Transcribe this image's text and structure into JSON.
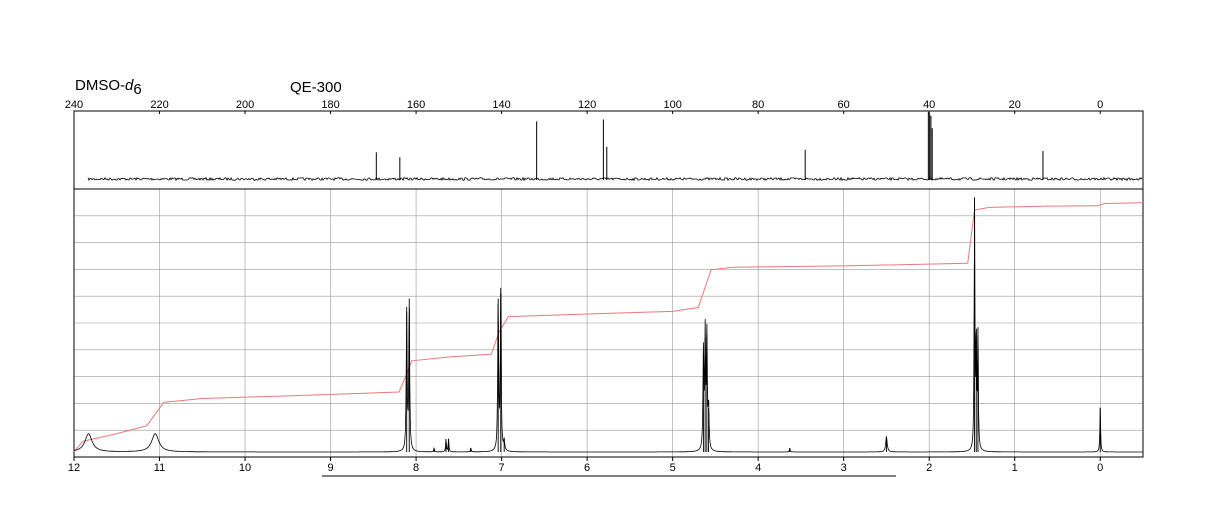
{
  "labels": {
    "solvent_prefix": "DMSO-",
    "solvent_italic": "d",
    "solvent_subscript": "6",
    "instrument": "QE-300"
  },
  "colors": {
    "spectrum": "#000000",
    "integral": "#e8797b",
    "grid": "#9a9a9a",
    "frame": "#000000"
  },
  "chart_data": [
    {
      "type": "line",
      "id": "c13",
      "title": "",
      "xlabel": "",
      "ylabel": "",
      "xlim": [
        240,
        -10
      ],
      "x_reversed": true,
      "xticks": [
        240,
        220,
        200,
        180,
        160,
        140,
        120,
        100,
        80,
        60,
        40,
        20,
        0
      ],
      "grid": false,
      "peaks": [
        {
          "ppm": 169.3,
          "height": 0.43
        },
        {
          "ppm": 163.8,
          "height": 0.35
        },
        {
          "ppm": 131.8,
          "height": 0.93
        },
        {
          "ppm": 116.2,
          "height": 0.96
        },
        {
          "ppm": 115.4,
          "height": 0.52
        },
        {
          "ppm": 69.0,
          "height": 0.47
        },
        {
          "ppm": 40.2,
          "height": 1.08
        },
        {
          "ppm": 39.9,
          "height": 1.05
        },
        {
          "ppm": 39.6,
          "height": 1.02
        },
        {
          "ppm": 39.3,
          "height": 0.82
        },
        {
          "ppm": 13.4,
          "height": 0.45
        }
      ]
    },
    {
      "type": "line",
      "id": "h1",
      "title": "",
      "xlabel": "",
      "ylabel": "",
      "xlim": [
        12,
        -0.5
      ],
      "x_reversed": true,
      "xticks": [
        12,
        11,
        10,
        9,
        8,
        7,
        6,
        5,
        4,
        3,
        2,
        1,
        0
      ],
      "grid": true,
      "peaks": [
        {
          "ppm": 11.83,
          "height": 0.07,
          "width": 0.05
        },
        {
          "ppm": 11.05,
          "height": 0.07,
          "width": 0.05
        },
        {
          "ppm": 8.11,
          "height": 0.54,
          "width": 0.006
        },
        {
          "ppm": 8.08,
          "height": 0.59,
          "width": 0.006
        },
        {
          "ppm": 7.79,
          "height": 0.015,
          "width": 0.005
        },
        {
          "ppm": 7.65,
          "height": 0.05,
          "width": 0.005
        },
        {
          "ppm": 7.62,
          "height": 0.05,
          "width": 0.005
        },
        {
          "ppm": 7.36,
          "height": 0.015,
          "width": 0.005
        },
        {
          "ppm": 7.04,
          "height": 0.59,
          "width": 0.006
        },
        {
          "ppm": 7.01,
          "height": 0.61,
          "width": 0.006
        },
        {
          "ppm": 6.97,
          "height": 0.04,
          "width": 0.006
        },
        {
          "ppm": 4.64,
          "height": 0.38,
          "width": 0.006
        },
        {
          "ppm": 4.62,
          "height": 0.44,
          "width": 0.006
        },
        {
          "ppm": 4.6,
          "height": 0.45,
          "width": 0.006
        },
        {
          "ppm": 4.58,
          "height": 0.17,
          "width": 0.006
        },
        {
          "ppm": 3.63,
          "height": 0.015,
          "width": 0.005
        },
        {
          "ppm": 2.5,
          "height": 0.06,
          "width": 0.01
        },
        {
          "ppm": 1.47,
          "height": 0.98,
          "width": 0.005
        },
        {
          "ppm": 1.45,
          "height": 0.46,
          "width": 0.005
        },
        {
          "ppm": 1.43,
          "height": 0.48,
          "width": 0.005
        },
        {
          "ppm": 0.0,
          "height": 0.17,
          "width": 0.005
        }
      ],
      "integral": [
        [
          12.0,
          0.02
        ],
        [
          11.9,
          0.06
        ],
        [
          11.5,
          0.09
        ],
        [
          11.15,
          0.12
        ],
        [
          10.95,
          0.21
        ],
        [
          10.5,
          0.225
        ],
        [
          9.5,
          0.235
        ],
        [
          8.6,
          0.245
        ],
        [
          8.2,
          0.25
        ],
        [
          8.12,
          0.31
        ],
        [
          8.05,
          0.37
        ],
        [
          7.6,
          0.385
        ],
        [
          7.12,
          0.395
        ],
        [
          7.03,
          0.48
        ],
        [
          6.92,
          0.54
        ],
        [
          6.0,
          0.55
        ],
        [
          5.0,
          0.56
        ],
        [
          4.7,
          0.575
        ],
        [
          4.55,
          0.72
        ],
        [
          4.3,
          0.73
        ],
        [
          3.0,
          0.735
        ],
        [
          1.55,
          0.745
        ],
        [
          1.47,
          0.95
        ],
        [
          1.3,
          0.96
        ],
        [
          0.6,
          0.965
        ],
        [
          0.03,
          0.966
        ],
        [
          -0.05,
          0.975
        ],
        [
          -0.5,
          0.978
        ]
      ]
    }
  ]
}
